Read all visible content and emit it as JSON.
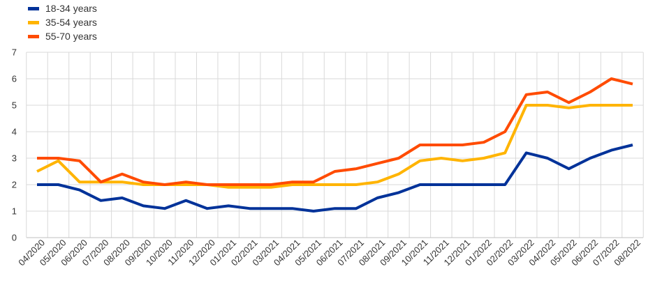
{
  "chart_data": {
    "type": "line",
    "categories": [
      "04/2020",
      "05/2020",
      "06/2020",
      "07/2020",
      "08/2020",
      "09/2020",
      "10/2020",
      "11/2020",
      "12/2020",
      "01/2021",
      "02/2021",
      "03/2021",
      "04/2021",
      "05/2021",
      "06/2021",
      "07/2021",
      "08/2021",
      "09/2021",
      "10/2021",
      "11/2021",
      "12/2021",
      "01/2022",
      "02/2022",
      "03/2022",
      "04/2022",
      "05/2022",
      "06/2022",
      "07/2022",
      "08/2022"
    ],
    "series": [
      {
        "name": "18-34 years",
        "color": "#003299",
        "values": [
          2.0,
          2.0,
          1.8,
          1.4,
          1.5,
          1.2,
          1.1,
          1.4,
          1.1,
          1.2,
          1.1,
          1.1,
          1.1,
          1.0,
          1.1,
          1.1,
          1.5,
          1.7,
          2.0,
          2.0,
          2.0,
          2.0,
          2.0,
          3.2,
          3.0,
          2.6,
          3.0,
          3.3,
          3.5
        ]
      },
      {
        "name": "35-54 years",
        "color": "#FFB400",
        "values": [
          2.5,
          2.9,
          2.1,
          2.1,
          2.1,
          2.0,
          2.0,
          2.0,
          2.0,
          1.9,
          1.9,
          1.9,
          2.0,
          2.0,
          2.0,
          2.0,
          2.1,
          2.4,
          2.9,
          3.0,
          2.9,
          3.0,
          3.2,
          5.0,
          5.0,
          4.9,
          5.0,
          5.0,
          5.0
        ]
      },
      {
        "name": "55-70 years",
        "color": "#FF4B00",
        "values": [
          3.0,
          3.0,
          2.9,
          2.1,
          2.4,
          2.1,
          2.0,
          2.1,
          2.0,
          2.0,
          2.0,
          2.0,
          2.1,
          2.1,
          2.5,
          2.6,
          2.8,
          3.0,
          3.5,
          3.5,
          3.5,
          3.6,
          4.0,
          5.4,
          5.5,
          5.1,
          5.5,
          6.0,
          5.8
        ]
      }
    ],
    "title": "",
    "xlabel": "",
    "ylabel": "",
    "ylim": [
      0,
      7
    ],
    "yticks": [
      "0",
      "1",
      "2",
      "3",
      "4",
      "5",
      "6",
      "7"
    ],
    "grid": true,
    "legend": "top-left"
  }
}
